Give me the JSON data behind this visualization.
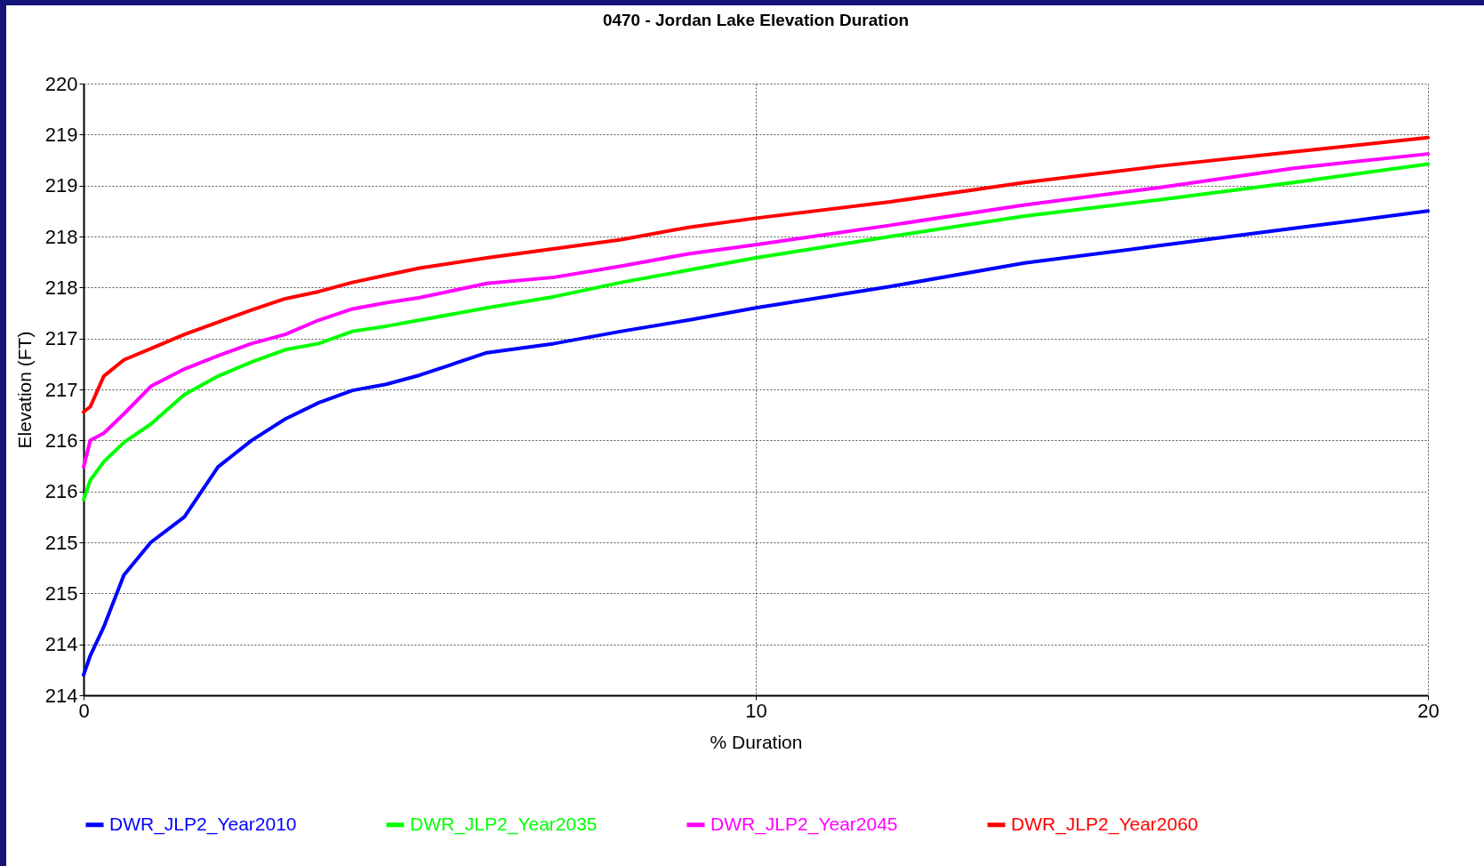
{
  "chart_data": {
    "type": "line",
    "title": "0470 - Jordan Lake Elevation Duration",
    "xlabel": "% Duration",
    "ylabel": "Elevation (FT)",
    "x": [
      0,
      0.1,
      0.3,
      0.6,
      1,
      1.5,
      2,
      2.5,
      3,
      3.5,
      4,
      4.5,
      5,
      6,
      7,
      8,
      9,
      10,
      12,
      14,
      16,
      18,
      20
    ],
    "series": [
      {
        "name": "DWR_JLP2_Year2010",
        "color": "#0000ff",
        "values": [
          214.2,
          214.39,
          214.67,
          215.18,
          215.5,
          215.75,
          216.24,
          216.5,
          216.71,
          216.87,
          216.99,
          217.05,
          217.14,
          217.36,
          217.45,
          217.57,
          217.68,
          217.8,
          218.01,
          218.24,
          218.41,
          218.58,
          218.75
        ]
      },
      {
        "name": "DWR_JLP2_Year2035",
        "color": "#00ff00",
        "values": [
          215.92,
          216.11,
          216.29,
          216.48,
          216.66,
          216.95,
          217.13,
          217.27,
          217.39,
          217.45,
          217.57,
          217.62,
          217.68,
          217.8,
          217.91,
          218.05,
          218.17,
          218.29,
          218.5,
          218.7,
          218.86,
          219.03,
          219.21
        ]
      },
      {
        "name": "DWR_JLP2_Year2045",
        "color": "#ff00ff",
        "values": [
          216.24,
          216.5,
          216.57,
          216.76,
          217.03,
          217.2,
          217.33,
          217.45,
          217.54,
          217.68,
          217.79,
          217.85,
          217.9,
          218.04,
          218.1,
          218.21,
          218.33,
          218.42,
          218.61,
          218.81,
          218.98,
          219.17,
          219.31
        ]
      },
      {
        "name": "DWR_JLP2_Year2060",
        "color": "#ff0000",
        "values": [
          216.78,
          216.83,
          217.13,
          217.29,
          217.4,
          217.54,
          217.66,
          217.78,
          217.89,
          217.96,
          218.05,
          218.12,
          218.19,
          218.29,
          218.38,
          218.47,
          218.59,
          218.68,
          218.84,
          219.03,
          219.19,
          219.33,
          219.47
        ]
      }
    ],
    "xlim": [
      0,
      20
    ],
    "xticks": [
      0,
      10,
      20
    ],
    "ylim": [
      214,
      220
    ],
    "yticks": [
      214,
      {
        "value": 214.5,
        "label": "214"
      },
      215,
      {
        "value": 215.5,
        "label": "215"
      },
      216,
      {
        "value": 216.5,
        "label": "216"
      },
      217,
      {
        "value": 217.5,
        "label": "217"
      },
      218,
      {
        "value": 218.5,
        "label": "218"
      },
      219,
      {
        "value": 219.5,
        "label": "219"
      },
      220
    ],
    "grid": true,
    "legend": "bottom",
    "line_style": "solid",
    "marker": "none"
  }
}
